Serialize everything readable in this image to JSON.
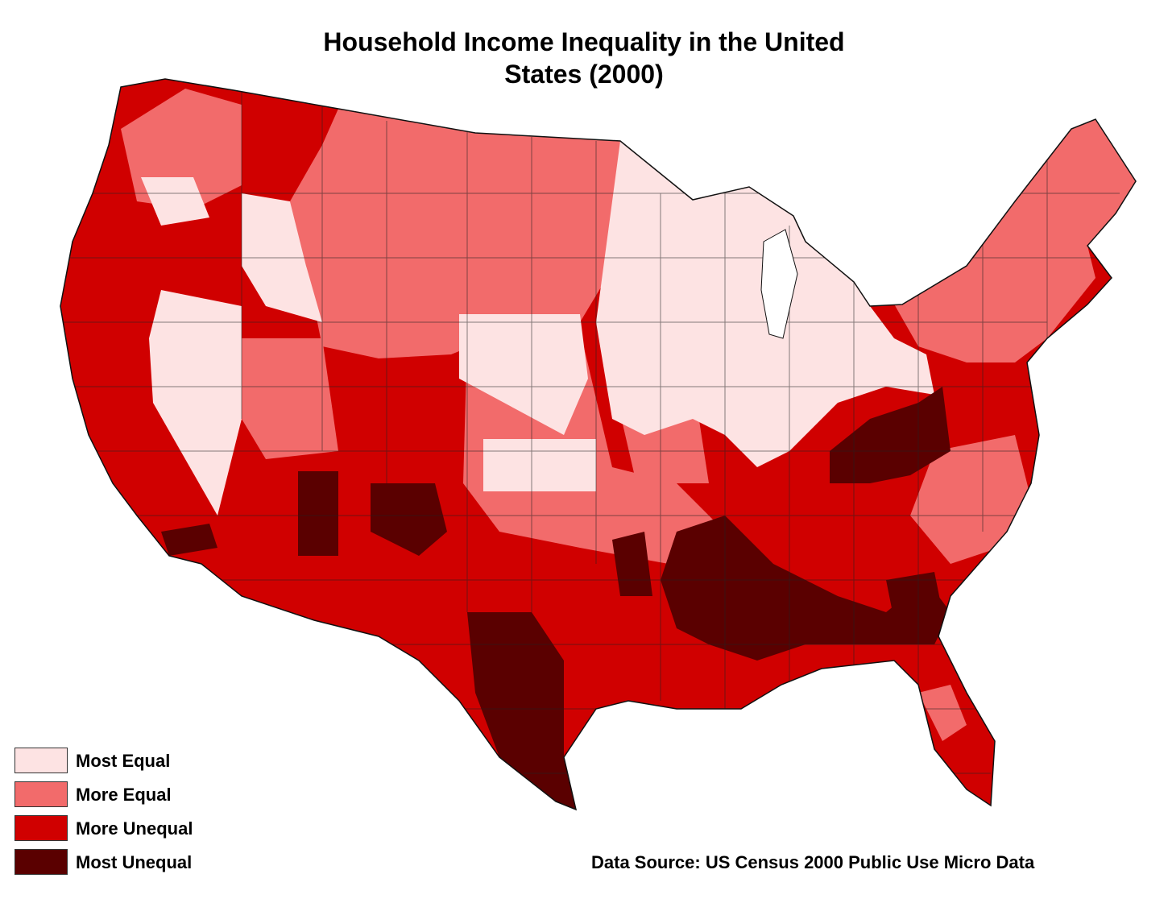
{
  "title": "Household Income Inequality in the United States (2000)",
  "legend": [
    {
      "label": "Most Equal",
      "color": "#fde3e3"
    },
    {
      "label": "More Equal",
      "color": "#f26b6b"
    },
    {
      "label": "More Unequal",
      "color": "#d00000"
    },
    {
      "label": "Most Unequal",
      "color": "#5a0000"
    }
  ],
  "source": "Data Source: US Census 2000 Public Use Micro Data",
  "colors": {
    "most_equal": "#fde3e3",
    "more_equal": "#f26b6b",
    "more_unequal": "#d00000",
    "most_unequal": "#5a0000",
    "border": "#222222"
  }
}
